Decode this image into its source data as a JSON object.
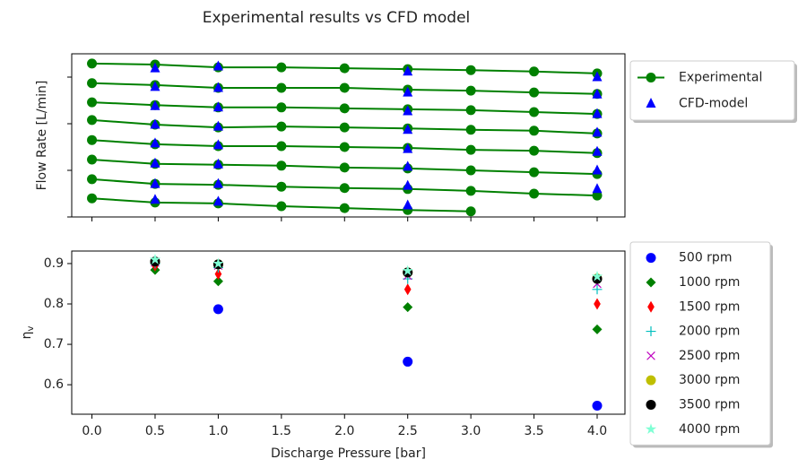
{
  "chart_data": [
    {
      "type": "line",
      "title": "Experimental results vs CFD model",
      "ylabel": "Flow Rate [L/min]",
      "x": [
        0,
        0.5,
        1,
        1.5,
        2,
        2.5,
        3,
        3.5,
        4
      ],
      "xlim": [
        -0.16,
        4.22
      ],
      "xticks": [
        0,
        0.5,
        1,
        1.5,
        2,
        2.5,
        3,
        3.5,
        4
      ],
      "xtick_labels": false,
      "ylim": [
        10,
        45
      ],
      "yticks": [
        10,
        20,
        30,
        40
      ],
      "ytick_labels": false,
      "legend": "right",
      "series": [
        {
          "name": "Experimental",
          "color": "#008000",
          "marker": "o",
          "linestyle": "-",
          "values": [
            [
              42.9,
              42.7,
              42.1,
              42.1,
              41.9,
              41.7,
              41.5,
              41.2,
              40.8
            ],
            [
              38.7,
              38.3,
              37.7,
              37.7,
              37.7,
              37.3,
              37.1,
              36.7,
              36.4
            ],
            [
              34.6,
              34.0,
              33.5,
              33.5,
              33.3,
              33.1,
              32.9,
              32.5,
              32.1
            ],
            [
              30.8,
              29.8,
              29.2,
              29.4,
              29.2,
              29.0,
              28.7,
              28.5,
              27.9
            ],
            [
              26.5,
              25.6,
              25.2,
              25.2,
              25.0,
              24.8,
              24.4,
              24.2,
              23.7
            ],
            [
              22.3,
              21.4,
              21.2,
              21.0,
              20.6,
              20.4,
              20.0,
              19.6,
              19.2
            ],
            [
              18.1,
              17.1,
              16.9,
              16.5,
              16.2,
              16.0,
              15.6,
              15.0,
              14.6
            ],
            [
              14.0,
              13.1,
              12.9,
              12.3,
              11.9,
              11.5,
              11.2,
              null,
              null
            ]
          ]
        },
        {
          "name": "CFD-model",
          "color": "#0000ff",
          "marker": "^",
          "linestyle": "none",
          "x": [
            0.5,
            1,
            2.5,
            4
          ],
          "values": [
            [
              41.9,
              42.3,
              41.2,
              40.0
            ],
            [
              37.9,
              37.7,
              36.7,
              36.3
            ],
            [
              33.8,
              33.5,
              32.7,
              32.1
            ],
            [
              29.8,
              29.4,
              28.7,
              28.1
            ],
            [
              25.8,
              25.4,
              24.6,
              24.0
            ],
            [
              21.5,
              21.3,
              20.8,
              20.0
            ],
            [
              17.1,
              17.1,
              16.7,
              16.0
            ],
            [
              13.7,
              13.3,
              12.5,
              null
            ]
          ]
        }
      ]
    },
    {
      "type": "scatter",
      "xlabel": "Discharge Pressure [bar]",
      "ylabel": "η",
      "ylabel_subscript": "v",
      "x": [
        0.5,
        1,
        2.5,
        4
      ],
      "xlim": [
        -0.16,
        4.22
      ],
      "xticks": [
        {
          "value": 0,
          "label": "0.0"
        },
        0.5,
        {
          "value": 1,
          "label": "1.0"
        },
        1.5,
        {
          "value": 2,
          "label": "2.0"
        },
        2.5,
        {
          "value": 3,
          "label": "3.0"
        },
        3.5,
        {
          "value": 4,
          "label": "4.0"
        }
      ],
      "ylim": [
        0.527,
        0.931
      ],
      "yticks": [
        0.6,
        0.7,
        0.8,
        0.9
      ],
      "legend": "right",
      "series": [
        {
          "name": "500 rpm",
          "color": "#0000ff",
          "marker": "o",
          "values": [
            0.905,
            0.787,
            0.657,
            0.548
          ]
        },
        {
          "name": "1000 rpm",
          "color": "#008000",
          "marker": "D",
          "values": [
            0.884,
            0.856,
            0.792,
            0.737
          ]
        },
        {
          "name": "1500 rpm",
          "color": "#ff0000",
          "marker": "d",
          "values": [
            0.895,
            0.874,
            0.836,
            0.8
          ]
        },
        {
          "name": "2000 rpm",
          "color": "#00bfbf",
          "marker": "+",
          "values": [
            0.9,
            0.89,
            0.862,
            0.836
          ]
        },
        {
          "name": "2500 rpm",
          "color": "#bf00bf",
          "marker": "x",
          "values": [
            0.903,
            0.895,
            0.87,
            0.85
          ]
        },
        {
          "name": "3000 rpm",
          "color": "#bfbf00",
          "marker": "o",
          "values": [
            0.905,
            0.898,
            0.878,
            0.863
          ]
        },
        {
          "name": "3500 rpm",
          "color": "#000000",
          "marker": "o",
          "values": [
            0.905,
            0.898,
            0.878,
            0.862
          ]
        },
        {
          "name": "4000 rpm",
          "color": "#7fffd4",
          "marker": "*",
          "values": [
            0.91,
            0.9,
            0.882,
            0.868
          ]
        }
      ]
    }
  ]
}
